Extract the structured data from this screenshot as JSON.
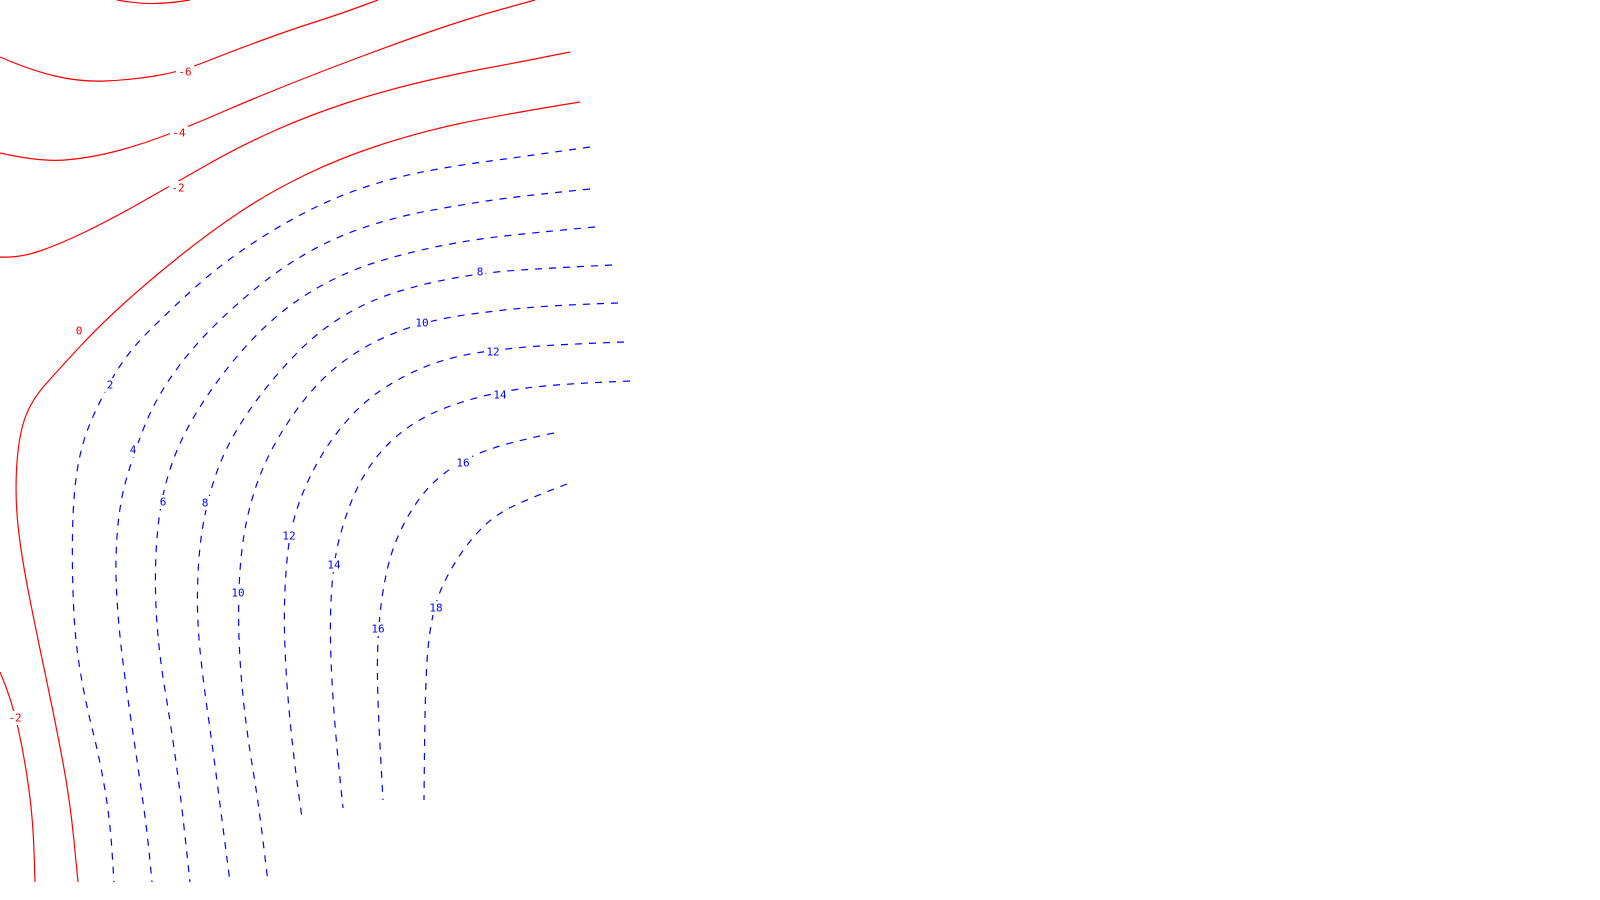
{
  "chart_data": {
    "type": "contour",
    "colors": {
      "negative_and_zero": "#ff0000",
      "positive": "#0000ff",
      "background": "#ffffff"
    },
    "line_styles": {
      "negative_and_zero": "solid",
      "positive": "dashed"
    },
    "levels": [
      {
        "value": -6,
        "label": "-6"
      },
      {
        "value": -4,
        "label": "-4"
      },
      {
        "value": -2,
        "label": "-2"
      },
      {
        "value": 0,
        "label": "0"
      },
      {
        "value": 2,
        "label": "2"
      },
      {
        "value": 4,
        "label": "4"
      },
      {
        "value": 6,
        "label": "6"
      },
      {
        "value": 8,
        "label": "8"
      },
      {
        "value": 10,
        "label": "10"
      },
      {
        "value": 12,
        "label": "12"
      },
      {
        "value": 14,
        "label": "14"
      },
      {
        "value": 16,
        "label": "16"
      },
      {
        "value": 18,
        "label": "18"
      }
    ]
  }
}
